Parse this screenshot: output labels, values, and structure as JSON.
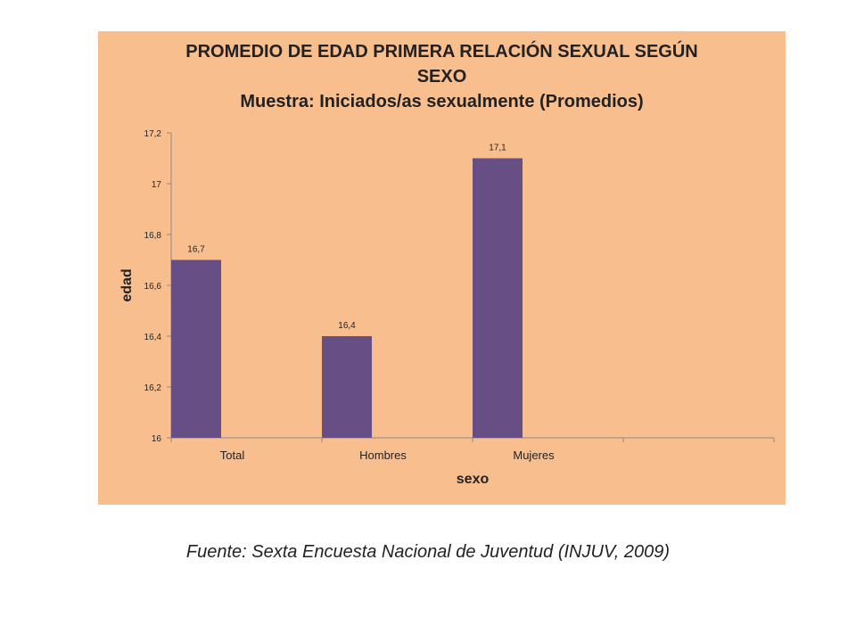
{
  "chart_data": {
    "type": "bar",
    "title_line1": "PROMEDIO DE EDAD PRIMERA RELACIÓN SEXUAL SEGÚN",
    "title_line2": "SEXO",
    "subtitle": "Muestra: Iniciados/as sexualmente (Promedios)",
    "xlabel": "sexo",
    "ylabel": "edad",
    "categories": [
      "Total",
      "Hombres",
      "Mujeres"
    ],
    "values": [
      16.7,
      16.4,
      17.1
    ],
    "value_labels": [
      "16,7",
      "16,4",
      "17,1"
    ],
    "ylim": [
      16,
      17.2
    ],
    "yticks": [
      16,
      16.2,
      16.4,
      16.6,
      16.8,
      17,
      17.2
    ],
    "ytick_labels": [
      "16",
      "16,2",
      "16,4",
      "16,6",
      "16,8",
      "17",
      "17,2"
    ],
    "grid": false,
    "colors": {
      "bar": "#674f86",
      "background": "#f9be8e",
      "axis": "#8a8a8a"
    }
  },
  "source": "Fuente: Sexta Encuesta Nacional de Juventud (INJUV, 2009)"
}
